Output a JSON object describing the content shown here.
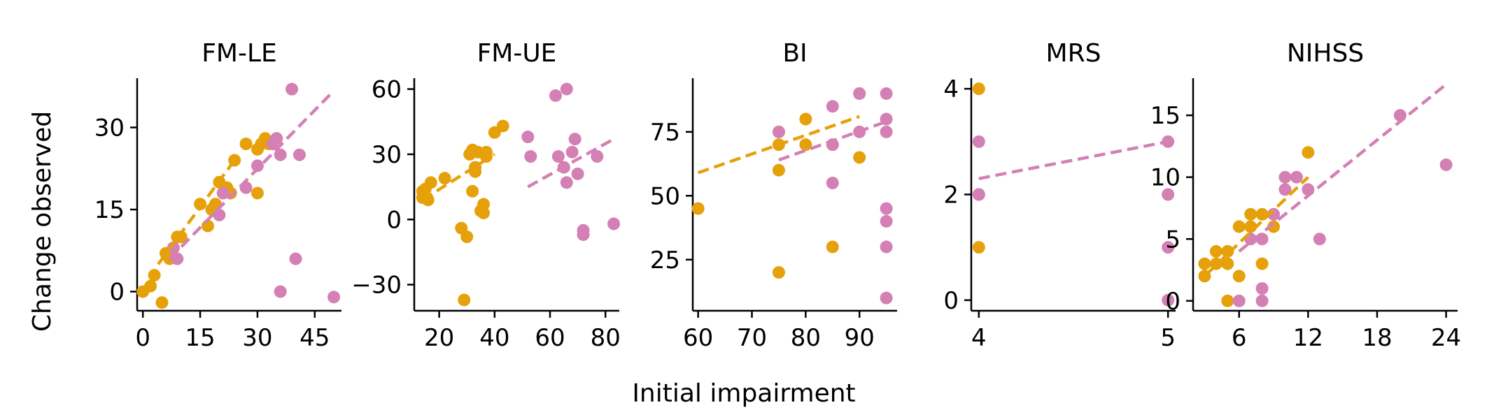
{
  "figure": {
    "ylabel": "Change observed",
    "xlabel": "Initial impairment",
    "colors": {
      "orange": "#E6A10A",
      "pink": "#D480B4"
    }
  },
  "chart_data": [
    {
      "type": "scatter",
      "title": "FM-LE",
      "xlim": [
        -1.5,
        52
      ],
      "ylim": [
        -3.5,
        39
      ],
      "xticks": [
        0,
        15,
        30,
        45
      ],
      "xtick_labels": [
        "0",
        "15",
        "30",
        "45"
      ],
      "yticks": [
        0,
        15,
        30
      ],
      "ytick_labels": [
        "0",
        "15",
        "30"
      ],
      "series": [
        {
          "color": "orange",
          "points": [
            [
              0,
              0
            ],
            [
              2,
              1
            ],
            [
              3,
              3
            ],
            [
              5,
              -2
            ],
            [
              6,
              7
            ],
            [
              7,
              6
            ],
            [
              8,
              8
            ],
            [
              9,
              10
            ],
            [
              10,
              10
            ],
            [
              15,
              16
            ],
            [
              17,
              12
            ],
            [
              18,
              15
            ],
            [
              19,
              16
            ],
            [
              20,
              20
            ],
            [
              21,
              18
            ],
            [
              22,
              19
            ],
            [
              23,
              18
            ],
            [
              24,
              24
            ],
            [
              27,
              27
            ],
            [
              30,
              26
            ],
            [
              30,
              18
            ],
            [
              31,
              27
            ],
            [
              32,
              28
            ],
            [
              33,
              27
            ],
            [
              35,
              28
            ]
          ],
          "fit": [
            [
              4,
              5
            ],
            [
              24,
              24
            ]
          ]
        },
        {
          "color": "pink",
          "points": [
            [
              8,
              8
            ],
            [
              9,
              6
            ],
            [
              20,
              14
            ],
            [
              21,
              18
            ],
            [
              27,
              19
            ],
            [
              30,
              23
            ],
            [
              34,
              27
            ],
            [
              35,
              28
            ],
            [
              36,
              25
            ],
            [
              36,
              0
            ],
            [
              39,
              37
            ],
            [
              40,
              6
            ],
            [
              41,
              25
            ],
            [
              50,
              -1
            ]
          ],
          "fit": [
            [
              7,
              6
            ],
            [
              49,
              36
            ]
          ]
        }
      ]
    },
    {
      "type": "scatter",
      "title": "FM-UE",
      "xlim": [
        11,
        85
      ],
      "ylim": [
        -42,
        65
      ],
      "xticks": [
        20,
        40,
        60,
        80
      ],
      "xtick_labels": [
        "20",
        "40",
        "60",
        "80"
      ],
      "yticks": [
        -30,
        0,
        30,
        60
      ],
      "ytick_labels": [
        "−30",
        "0",
        "30",
        "60"
      ],
      "series": [
        {
          "color": "orange",
          "points": [
            [
              14,
              13
            ],
            [
              14,
              10
            ],
            [
              15,
              14
            ],
            [
              16,
              9
            ],
            [
              17,
              17
            ],
            [
              22,
              19
            ],
            [
              28,
              -4
            ],
            [
              29,
              -37
            ],
            [
              30,
              -8
            ],
            [
              31,
              30
            ],
            [
              32,
              13
            ],
            [
              32,
              32
            ],
            [
              33,
              24
            ],
            [
              33,
              22
            ],
            [
              34,
              31
            ],
            [
              35,
              4
            ],
            [
              35,
              4
            ],
            [
              36,
              7
            ],
            [
              36,
              3
            ],
            [
              37,
              31
            ],
            [
              37,
              29
            ],
            [
              40,
              40
            ],
            [
              43,
              43
            ]
          ],
          "fit": [
            [
              14,
              9
            ],
            [
              40,
              30
            ]
          ]
        },
        {
          "color": "pink",
          "points": [
            [
              52,
              38
            ],
            [
              53,
              29
            ],
            [
              62,
              57
            ],
            [
              63,
              29
            ],
            [
              65,
              24
            ],
            [
              66,
              60
            ],
            [
              66,
              17
            ],
            [
              68,
              31
            ],
            [
              69,
              37
            ],
            [
              70,
              21
            ],
            [
              72,
              -5
            ],
            [
              72,
              -7
            ],
            [
              77,
              29
            ],
            [
              83,
              -2
            ]
          ],
          "fit": [
            [
              52,
              15
            ],
            [
              83,
              37
            ]
          ]
        }
      ]
    },
    {
      "type": "scatter",
      "title": "BI",
      "xlim": [
        59,
        97
      ],
      "ylim": [
        5,
        96
      ],
      "xticks": [
        60,
        70,
        80,
        90
      ],
      "xtick_labels": [
        "60",
        "70",
        "80",
        "90"
      ],
      "yticks": [
        25,
        50,
        75
      ],
      "ytick_labels": [
        "25",
        "50",
        "75"
      ],
      "series": [
        {
          "color": "orange",
          "points": [
            [
              60,
              45
            ],
            [
              75,
              75
            ],
            [
              75,
              70
            ],
            [
              75,
              60
            ],
            [
              75,
              20
            ],
            [
              80,
              80
            ],
            [
              80,
              70
            ],
            [
              85,
              70
            ],
            [
              85,
              30
            ],
            [
              90,
              90
            ],
            [
              90,
              65
            ]
          ],
          "fit": [
            [
              60,
              59
            ],
            [
              90,
              81
            ]
          ]
        },
        {
          "color": "pink",
          "points": [
            [
              75,
              75
            ],
            [
              85,
              85
            ],
            [
              85,
              70
            ],
            [
              85,
              55
            ],
            [
              90,
              90
            ],
            [
              90,
              75
            ],
            [
              95,
              90
            ],
            [
              95,
              80
            ],
            [
              95,
              75
            ],
            [
              95,
              45
            ],
            [
              95,
              40
            ],
            [
              95,
              30
            ],
            [
              95,
              10
            ]
          ],
          "fit": [
            [
              75,
              64
            ],
            [
              95,
              79
            ]
          ]
        }
      ]
    },
    {
      "type": "scatter",
      "title": "MRS",
      "xlim": [
        3.96,
        5.04
      ],
      "ylim": [
        -0.2,
        4.2
      ],
      "xticks": [
        4,
        5
      ],
      "xtick_labels": [
        "4",
        "5"
      ],
      "yticks": [
        0,
        2,
        4
      ],
      "ytick_labels": [
        "0",
        "2",
        "4"
      ],
      "series": [
        {
          "color": "orange",
          "points": [
            [
              4,
              4
            ],
            [
              4,
              2
            ],
            [
              4,
              1
            ]
          ],
          "fit": null
        },
        {
          "color": "pink",
          "points": [
            [
              4,
              3
            ],
            [
              4,
              2
            ],
            [
              5,
              3
            ],
            [
              5,
              2
            ],
            [
              5,
              1
            ],
            [
              5,
              0
            ]
          ],
          "fit": [
            [
              4,
              2.3
            ],
            [
              5,
              3.0
            ]
          ]
        }
      ]
    },
    {
      "type": "scatter",
      "title": "NIHSS",
      "xlim": [
        2,
        25
      ],
      "ylim": [
        -0.8,
        18
      ],
      "xticks": [
        6,
        12,
        18,
        24
      ],
      "xtick_labels": [
        "6",
        "12",
        "18",
        "24"
      ],
      "yticks": [
        0,
        5,
        10,
        15
      ],
      "ytick_labels": [
        "0",
        "5",
        "10",
        "15"
      ],
      "series": [
        {
          "color": "orange",
          "points": [
            [
              3,
              2
            ],
            [
              3,
              3
            ],
            [
              4,
              3
            ],
            [
              4,
              4
            ],
            [
              5,
              4
            ],
            [
              5,
              3
            ],
            [
              5,
              0
            ],
            [
              6,
              2
            ],
            [
              6,
              6
            ],
            [
              7,
              6
            ],
            [
              7,
              7
            ],
            [
              8,
              7
            ],
            [
              8,
              3
            ],
            [
              9,
              6
            ],
            [
              12,
              12
            ]
          ],
          "fit": [
            [
              3,
              2
            ],
            [
              12,
              10
            ]
          ]
        },
        {
          "color": "pink",
          "points": [
            [
              6,
              0
            ],
            [
              7,
              5
            ],
            [
              8,
              5
            ],
            [
              8,
              1
            ],
            [
              8,
              0
            ],
            [
              9,
              7
            ],
            [
              10,
              9
            ],
            [
              10,
              10
            ],
            [
              11,
              10
            ],
            [
              12,
              9
            ],
            [
              13,
              5
            ],
            [
              20,
              15
            ],
            [
              24,
              11
            ]
          ],
          "fit": [
            [
              6,
              4
            ],
            [
              24,
              17.5
            ]
          ]
        }
      ]
    }
  ]
}
